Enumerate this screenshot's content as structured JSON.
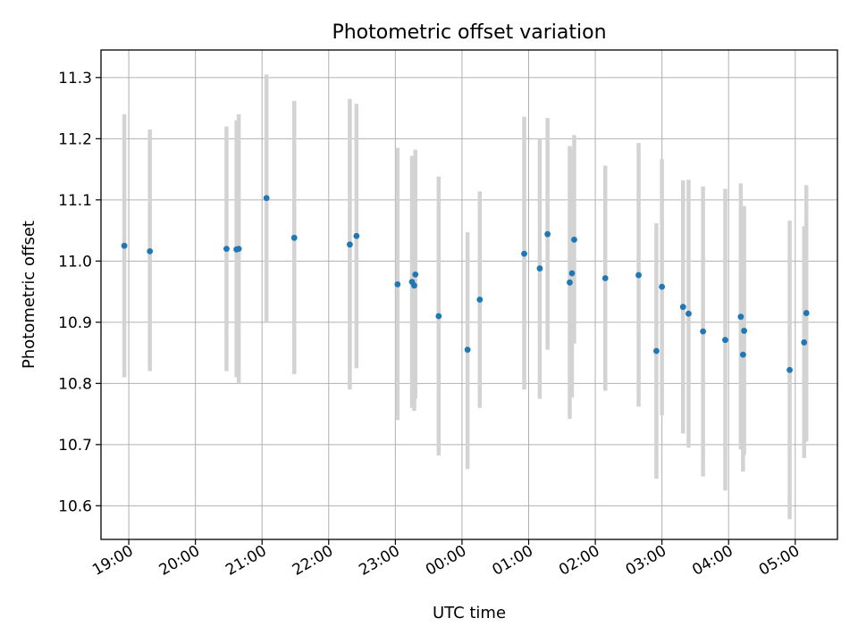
{
  "chart_data": {
    "type": "scatter",
    "title": "Photometric offset variation",
    "xlabel": "UTC time",
    "ylabel": "Photometric offset",
    "xlim": [
      "18:35",
      "05:38"
    ],
    "ylim": [
      10.545,
      11.345
    ],
    "grid": true,
    "x_ticks": [
      "19:00",
      "20:00",
      "21:00",
      "22:00",
      "23:00",
      "00:00",
      "01:00",
      "02:00",
      "03:00",
      "04:00",
      "05:00"
    ],
    "y_ticks": [
      10.6,
      10.7,
      10.8,
      10.9,
      11.0,
      11.1,
      11.2,
      11.3
    ],
    "y_tick_labels": [
      "10.6",
      "10.7",
      "10.8",
      "10.9",
      "11.0",
      "11.1",
      "11.2",
      "11.3"
    ],
    "point_color": "#1f77b4",
    "errorbar_color": "#d3d3d3",
    "points": [
      {
        "x": "18:56",
        "y": 11.025,
        "err_low": 10.81,
        "err_high": 11.24
      },
      {
        "x": "19:19",
        "y": 11.016,
        "err_low": 10.82,
        "err_high": 11.215
      },
      {
        "x": "20:28",
        "y": 11.02,
        "err_low": 10.82,
        "err_high": 11.22
      },
      {
        "x": "20:37",
        "y": 11.019,
        "err_low": 10.81,
        "err_high": 11.23
      },
      {
        "x": "20:39",
        "y": 11.02,
        "err_low": 10.8,
        "err_high": 11.24
      },
      {
        "x": "21:04",
        "y": 11.103,
        "err_low": 10.9,
        "err_high": 11.305
      },
      {
        "x": "21:29",
        "y": 11.038,
        "err_low": 10.815,
        "err_high": 11.262
      },
      {
        "x": "22:19",
        "y": 11.027,
        "err_low": 10.79,
        "err_high": 11.265
      },
      {
        "x": "22:25",
        "y": 11.041,
        "err_low": 10.825,
        "err_high": 11.257
      },
      {
        "x": "23:02",
        "y": 10.962,
        "err_low": 10.74,
        "err_high": 11.185
      },
      {
        "x": "23:15",
        "y": 10.966,
        "err_low": 10.76,
        "err_high": 11.172
      },
      {
        "x": "23:17",
        "y": 10.96,
        "err_low": 10.755,
        "err_high": 11.165
      },
      {
        "x": "23:18",
        "y": 10.978,
        "err_low": 10.775,
        "err_high": 11.182
      },
      {
        "x": "23:39",
        "y": 10.91,
        "err_low": 10.682,
        "err_high": 11.138
      },
      {
        "x": "00:05",
        "y": 10.855,
        "err_low": 10.66,
        "err_high": 11.047
      },
      {
        "x": "00:16",
        "y": 10.937,
        "err_low": 10.76,
        "err_high": 11.114
      },
      {
        "x": "00:56",
        "y": 11.012,
        "err_low": 10.79,
        "err_high": 11.236
      },
      {
        "x": "01:10",
        "y": 10.988,
        "err_low": 10.775,
        "err_high": 11.2
      },
      {
        "x": "01:17",
        "y": 11.044,
        "err_low": 10.855,
        "err_high": 11.234
      },
      {
        "x": "01:37",
        "y": 10.965,
        "err_low": 10.742,
        "err_high": 11.188
      },
      {
        "x": "01:39",
        "y": 10.98,
        "err_low": 10.777,
        "err_high": 11.183
      },
      {
        "x": "01:41",
        "y": 11.035,
        "err_low": 10.865,
        "err_high": 11.206
      },
      {
        "x": "02:09",
        "y": 10.972,
        "err_low": 10.788,
        "err_high": 11.156
      },
      {
        "x": "02:39",
        "y": 10.977,
        "err_low": 10.762,
        "err_high": 11.193
      },
      {
        "x": "02:55",
        "y": 10.853,
        "err_low": 10.644,
        "err_high": 11.062
      },
      {
        "x": "03:00",
        "y": 10.958,
        "err_low": 10.748,
        "err_high": 11.167
      },
      {
        "x": "03:19",
        "y": 10.925,
        "err_low": 10.718,
        "err_high": 11.132
      },
      {
        "x": "03:24",
        "y": 10.914,
        "err_low": 10.695,
        "err_high": 11.133
      },
      {
        "x": "03:37",
        "y": 10.885,
        "err_low": 10.648,
        "err_high": 11.122
      },
      {
        "x": "03:57",
        "y": 10.871,
        "err_low": 10.625,
        "err_high": 11.118
      },
      {
        "x": "04:11",
        "y": 10.909,
        "err_low": 10.692,
        "err_high": 11.127
      },
      {
        "x": "04:13",
        "y": 10.847,
        "err_low": 10.656,
        "err_high": 11.09
      },
      {
        "x": "04:14",
        "y": 10.886,
        "err_low": 10.683,
        "err_high": 11.09
      },
      {
        "x": "04:55",
        "y": 10.822,
        "err_low": 10.578,
        "err_high": 11.066
      },
      {
        "x": "05:08",
        "y": 10.867,
        "err_low": 10.678,
        "err_high": 11.057
      },
      {
        "x": "05:10",
        "y": 10.915,
        "err_low": 10.705,
        "err_high": 11.124
      }
    ]
  }
}
